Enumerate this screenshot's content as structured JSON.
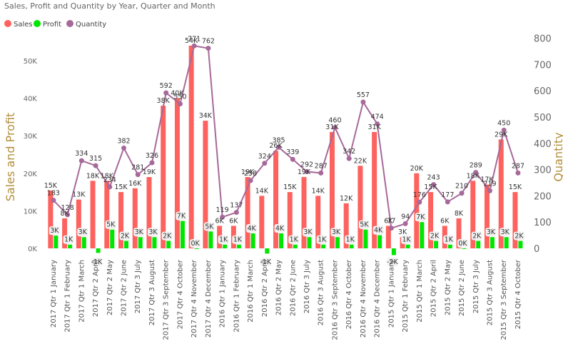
{
  "chart_data": {
    "type": "bar",
    "title": "Sales, Profit and Quantity by Year, Quarter and Month",
    "ylabel": "Sales and Profit",
    "y2label": "Quantity",
    "ylim": [
      -2000,
      57000
    ],
    "y2lim": [
      0,
      800
    ],
    "yticks": [
      "0K",
      "10K",
      "20K",
      "30K",
      "40K",
      "50K"
    ],
    "y2ticks": [
      "0",
      "100",
      "200",
      "300",
      "400",
      "500",
      "600",
      "700",
      "800"
    ],
    "legend_position": "top-left",
    "categories": [
      "2017 Qtr 1 January",
      "2017 Qtr 1 February",
      "2017 Qtr 1 March",
      "2017 Qtr 2 April",
      "2017 Qtr 2 May",
      "2017 Qtr 2 June",
      "2017 Qtr 3 July",
      "2017 Qtr 3 August",
      "2017 Qtr 3 September",
      "2017 Qtr 4 October",
      "2017 Qtr 4 November",
      "2017 Qtr 4 December",
      "2016 Qtr 1 January",
      "2016 Qtr 1 February",
      "2016 Qtr 1 March",
      "2016 Qtr 2 April",
      "2016 Qtr 2 May",
      "2016 Qtr 2 June",
      "2016 Qtr 3 July",
      "2016 Qtr 3 August",
      "2016 Qtr 3 September",
      "2016 Qtr 4 October",
      "2016 Qtr 4 November",
      "2016 Qtr 4 December",
      "2015 Qtr 1 January",
      "2015 Qtr 1 February",
      "2015 Qtr 1 March",
      "2015 Qtr 2 April",
      "2015 Qtr 2 May",
      "2015 Qtr 2 June",
      "2015 Qtr 3 July",
      "2015 Qtr 3 August",
      "2015 Qtr 3 September",
      "2015 Qtr 4 October"
    ],
    "series": [
      {
        "name": "Sales",
        "axis": "left",
        "kind": "bar",
        "color": "#fd625e",
        "values": [
          15400,
          8000,
          13000,
          18000,
          18000,
          15000,
          16000,
          19000,
          38000,
          40000,
          54000,
          34000,
          6000,
          6000,
          19000,
          14000,
          26000,
          15000,
          19000,
          14000,
          31000,
          12000,
          22000,
          31000,
          6000,
          3000,
          20000,
          15000,
          6000,
          8000,
          18000,
          17000,
          29000,
          15000
        ],
        "labels": [
          "15K",
          "8K",
          "13K",
          "18K",
          "18K",
          "15K",
          "16K",
          "19K",
          "38K",
          "40K",
          "54K",
          "34K",
          "6K",
          "6K",
          "19K",
          "14K",
          "26K",
          "15K",
          "19K",
          "14K",
          "31K",
          "12K",
          "22K",
          "31K",
          "6K",
          "3K",
          "20K",
          "15K",
          "6K",
          "8K",
          "18K",
          "17K",
          "29K",
          "15K"
        ]
      },
      {
        "name": "Profit",
        "axis": "left",
        "kind": "bar",
        "color": "#00e600",
        "values": [
          3400,
          1000,
          3000,
          -1200,
          5000,
          2000,
          3000,
          3000,
          2000,
          7300,
          0,
          4500,
          1000,
          1000,
          4000,
          -1400,
          4000,
          1000,
          3000,
          1000,
          3000,
          1000,
          5000,
          3500,
          -1800,
          1000,
          7000,
          2000,
          1000,
          0,
          2000,
          3000,
          3000,
          2000
        ],
        "labels": [
          "3K",
          "1K",
          "3K",
          "-1K",
          "5K",
          "2K",
          "3K",
          "3K",
          "2K",
          "7K",
          "0K",
          "5K",
          "1K",
          "1K",
          "4K",
          "-1K",
          "4K",
          "1K",
          "3K",
          "1K",
          "3K",
          "1K",
          "5K",
          "4K",
          "-2K",
          "1K",
          "7K",
          "2K",
          "1K",
          "0K",
          "2K",
          "3K",
          "3K",
          "2K"
        ]
      },
      {
        "name": "Quantity",
        "axis": "right",
        "kind": "line",
        "color": "#a66999",
        "values": [
          183,
          128,
          334,
          315,
          234,
          382,
          281,
          326,
          592,
          550,
          771,
          762,
          119,
          137,
          258,
          324,
          385,
          339,
          292,
          287,
          460,
          342,
          557,
          474,
          77,
          94,
          176,
          243,
          177,
          210,
          289,
          219,
          450,
          287
        ]
      }
    ]
  }
}
